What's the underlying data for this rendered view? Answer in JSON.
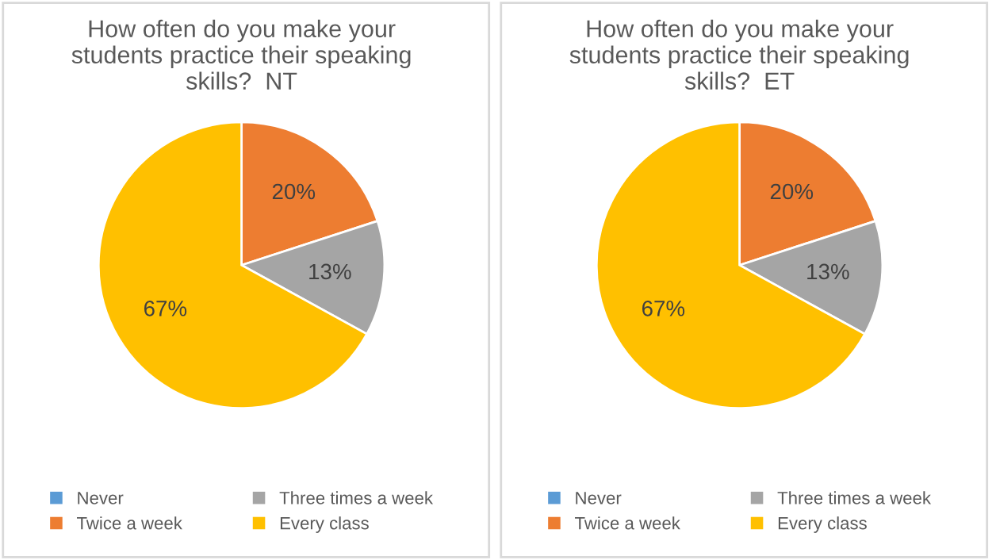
{
  "chart_data": [
    {
      "type": "pie",
      "title": "How often do you make your\nstudents practice their speaking\nskills?  NT",
      "categories": [
        "Never",
        "Twice a week",
        "Three times a week",
        "Every class"
      ],
      "values": [
        0,
        20,
        13,
        67
      ],
      "colors": [
        "#5b9bd5",
        "#ed7d31",
        "#a5a5a5",
        "#ffc000"
      ],
      "value_labels": [
        null,
        "20%",
        "13%",
        "67%"
      ],
      "legend": "bottom"
    },
    {
      "type": "pie",
      "title": "How often do you make your\nstudents practice their speaking\nskills?  ET",
      "categories": [
        "Never",
        "Twice a week",
        "Three times a week",
        "Every class"
      ],
      "values": [
        0,
        20,
        13,
        67
      ],
      "colors": [
        "#5b9bd5",
        "#ed7d31",
        "#a5a5a5",
        "#ffc000"
      ],
      "value_labels": [
        null,
        "20%",
        "13%",
        "67%"
      ],
      "legend": "bottom"
    }
  ]
}
